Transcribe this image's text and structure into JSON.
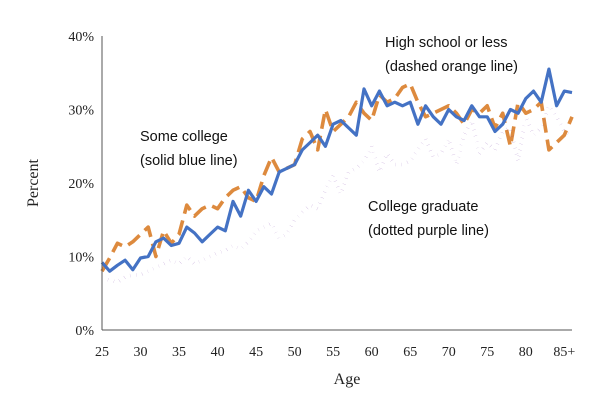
{
  "chart_data": {
    "type": "line",
    "title": "",
    "xlabel": "Age",
    "ylabel": "Percent",
    "xlim": [
      25,
      86
    ],
    "ylim": [
      0,
      40
    ],
    "grid": false,
    "x_ticks": [
      {
        "value": 25,
        "label": "25"
      },
      {
        "value": 30,
        "label": "30"
      },
      {
        "value": 35,
        "label": "35"
      },
      {
        "value": 40,
        "label": "40"
      },
      {
        "value": 45,
        "label": "45"
      },
      {
        "value": 50,
        "label": "50"
      },
      {
        "value": 55,
        "label": "55"
      },
      {
        "value": 60,
        "label": "60"
      },
      {
        "value": 65,
        "label": "65"
      },
      {
        "value": 70,
        "label": "70"
      },
      {
        "value": 75,
        "label": "75"
      },
      {
        "value": 80,
        "label": "80"
      },
      {
        "value": 85,
        "label": "85+"
      }
    ],
    "y_ticks": [
      {
        "value": 0,
        "label": "0%"
      },
      {
        "value": 10,
        "label": "10%"
      },
      {
        "value": 20,
        "label": "20%"
      },
      {
        "value": 30,
        "label": "30%"
      },
      {
        "value": 40,
        "label": "40%"
      }
    ],
    "x": [
      25,
      26,
      27,
      28,
      29,
      30,
      31,
      32,
      33,
      34,
      35,
      36,
      37,
      38,
      39,
      40,
      41,
      42,
      43,
      44,
      45,
      46,
      47,
      48,
      49,
      50,
      51,
      52,
      53,
      54,
      55,
      56,
      57,
      58,
      59,
      60,
      61,
      62,
      63,
      64,
      65,
      66,
      67,
      68,
      69,
      70,
      71,
      72,
      73,
      74,
      75,
      76,
      77,
      78,
      79,
      80,
      81,
      82,
      83,
      84,
      85,
      86
    ],
    "series": [
      {
        "key": "hs",
        "color": "#DD8A3E",
        "style": "dashed",
        "values": [
          8.0,
          9.8,
          11.8,
          11.3,
          12.0,
          13.0,
          14.0,
          10.0,
          13.5,
          11.8,
          13.0,
          17.0,
          15.5,
          16.5,
          17.0,
          16.5,
          18.0,
          19.0,
          19.5,
          18.0,
          17.5,
          21.0,
          23.5,
          21.5,
          22.0,
          22.5,
          26.0,
          27.0,
          24.5,
          30.0,
          27.0,
          28.0,
          29.0,
          31.0,
          29.5,
          28.5,
          32.0,
          31.0,
          31.5,
          33.0,
          33.5,
          31.0,
          29.0,
          29.5,
          30.0,
          30.5,
          29.5,
          28.0,
          30.0,
          29.5,
          30.5,
          27.5,
          29.5,
          25.0,
          31.0,
          29.5,
          30.0,
          31.0,
          24.5,
          25.5,
          26.5,
          29.0
        ]
      },
      {
        "key": "sc",
        "color": "#4472C4",
        "style": "solid",
        "values": [
          9.2,
          8.0,
          8.8,
          9.5,
          8.2,
          9.8,
          10.0,
          12.0,
          12.5,
          11.5,
          11.8,
          14.0,
          13.2,
          12.0,
          13.0,
          14.0,
          13.5,
          17.5,
          15.5,
          19.0,
          17.5,
          19.5,
          18.5,
          21.5,
          22.0,
          22.5,
          24.5,
          25.5,
          26.5,
          25.0,
          28.0,
          28.5,
          27.5,
          26.5,
          32.8,
          30.5,
          32.5,
          30.5,
          31.0,
          30.5,
          31.0,
          28.0,
          30.5,
          29.0,
          28.0,
          30.0,
          29.0,
          28.5,
          30.5,
          29.0,
          29.0,
          27.0,
          28.0,
          30.0,
          29.5,
          31.5,
          32.5,
          31.0,
          35.5,
          30.5,
          32.5,
          32.3
        ]
      },
      {
        "key": "cg",
        "color": "#7030A0",
        "style": "dotted",
        "values": [
          7.0,
          6.8,
          6.5,
          7.2,
          7.5,
          7.5,
          8.0,
          8.5,
          9.0,
          9.5,
          9.0,
          10.0,
          9.0,
          9.5,
          10.0,
          10.5,
          10.8,
          11.5,
          11.0,
          12.0,
          13.5,
          14.0,
          14.5,
          12.5,
          13.0,
          15.0,
          16.0,
          17.0,
          16.5,
          19.0,
          21.0,
          18.5,
          21.5,
          22.0,
          23.0,
          25.0,
          21.5,
          24.0,
          22.5,
          22.5,
          23.0,
          24.5,
          26.0,
          23.5,
          24.0,
          26.0,
          22.5,
          26.5,
          28.5,
          24.0,
          25.5,
          24.5,
          27.0,
          27.5,
          23.0,
          29.0,
          26.5,
          27.5,
          30.5,
          29.0,
          27.0,
          26.5
        ]
      }
    ],
    "annotations": [
      {
        "key": "sc",
        "lines": [
          "Some college",
          "(solid blue line)"
        ]
      },
      {
        "key": "hs",
        "lines": [
          "High school or less",
          "(dashed orange line)"
        ]
      },
      {
        "key": "cg",
        "lines": [
          "College graduate",
          "(dotted purple line)"
        ]
      }
    ]
  }
}
